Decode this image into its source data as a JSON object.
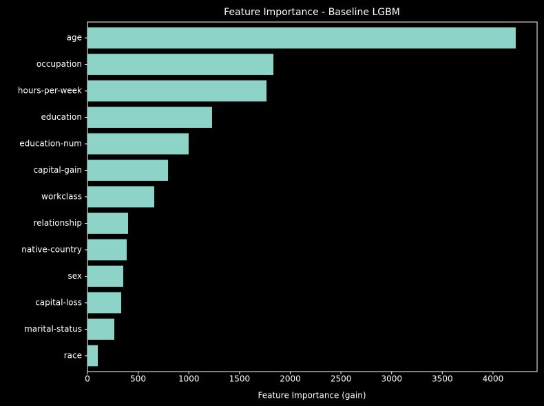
{
  "chart_data": {
    "type": "barh",
    "title": "Feature Importance - Baseline LGBM",
    "x_label": "Feature Importance (gain)",
    "categories": [
      "age",
      "occupation",
      "hours-per-week",
      "education",
      "education-num",
      "capital-gain",
      "workclass",
      "relationship",
      "native-country",
      "sex",
      "capital-loss",
      "marital-status",
      "race"
    ],
    "values": [
      4224,
      1834,
      1766,
      1229,
      998,
      795,
      659,
      401,
      387,
      353,
      333,
      265,
      102
    ],
    "color": "#8dd3c7",
    "xlim": [
      0,
      4435
    ],
    "xticks": [
      0,
      500,
      1000,
      1500,
      2000,
      2500,
      3000,
      3500,
      4000
    ]
  }
}
